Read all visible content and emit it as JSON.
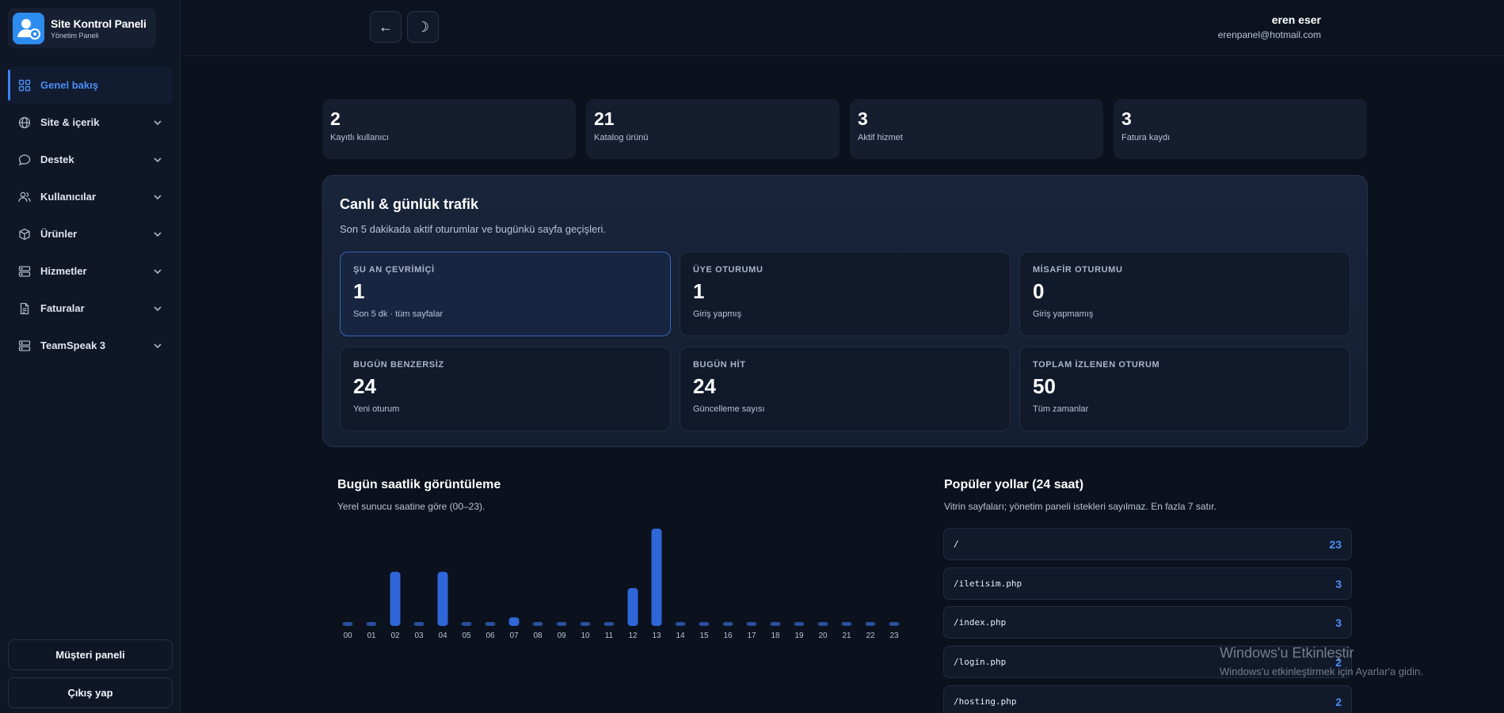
{
  "brand": {
    "title": "Site Kontrol Paneli",
    "subtitle": "Yönetim Paneli"
  },
  "nav": [
    {
      "label": "Genel bakış",
      "icon": "grid-icon",
      "active": true
    },
    {
      "label": "Site & içerik",
      "icon": "globe-icon"
    },
    {
      "label": "Destek",
      "icon": "chat-icon"
    },
    {
      "label": "Kullanıcılar",
      "icon": "users-icon"
    },
    {
      "label": "Ürünler",
      "icon": "box-icon"
    },
    {
      "label": "Hizmetler",
      "icon": "server-icon"
    },
    {
      "label": "Faturalar",
      "icon": "document-icon"
    },
    {
      "label": "TeamSpeak 3",
      "icon": "server-icon"
    }
  ],
  "sidebar_footer": {
    "customer_panel": "Müşteri paneli",
    "logout": "Çıkış yap"
  },
  "header": {
    "back_glyph": "←",
    "theme_glyph": "☽",
    "user_name": "eren eser",
    "user_email": "erenpanel@hotmail.com"
  },
  "stats": [
    {
      "value": "2",
      "label": "Kayıtlı kullanıcı"
    },
    {
      "value": "21",
      "label": "Katalog ürünü"
    },
    {
      "value": "3",
      "label": "Aktif hizmet"
    },
    {
      "value": "3",
      "label": "Fatura kaydı"
    }
  ],
  "traffic": {
    "title": "Canlı & günlük trafik",
    "description": "Son 5 dakikada aktif oturumlar ve bugünkü sayfa geçişleri.",
    "cells": [
      {
        "title": "ŞU AN ÇEVRİMİÇİ",
        "value": "1",
        "sub": "Son 5 dk · tüm sayfalar",
        "highlight": true
      },
      {
        "title": "ÜYE OTURUMU",
        "value": "1",
        "sub": "Giriş yapmış"
      },
      {
        "title": "MİSAFİR OTURUMU",
        "value": "0",
        "sub": "Giriş yapmamış"
      },
      {
        "title": "BUGÜN BENZERSİZ",
        "value": "24",
        "sub": "Yeni oturum"
      },
      {
        "title": "BUGÜN HİT",
        "value": "24",
        "sub": "Güncelleme sayısı"
      },
      {
        "title": "TOPLAM İZLENEN OTURUM",
        "value": "50",
        "sub": "Tüm zamanlar"
      }
    ]
  },
  "hourly": {
    "title": "Bugün saatlik görüntüleme",
    "description": "Yerel sunucu saatine göre (00–23)."
  },
  "chart_data": {
    "type": "bar",
    "categories": [
      "00",
      "01",
      "02",
      "03",
      "04",
      "05",
      "06",
      "07",
      "08",
      "09",
      "10",
      "11",
      "12",
      "13",
      "14",
      "15",
      "16",
      "17",
      "18",
      "19",
      "20",
      "21",
      "22",
      "23"
    ],
    "values": [
      0,
      0,
      5,
      0,
      5,
      0,
      0,
      0.8,
      0,
      0,
      0,
      0,
      3.5,
      9,
      0,
      0,
      0,
      0,
      0,
      0,
      0,
      0,
      0,
      0
    ],
    "colors": {
      "bar": "#2f67d8",
      "bar_top": "#3d7bf0",
      "tick": "#b8c3d6"
    }
  },
  "popular": {
    "title": "Popüler yollar (24 saat)",
    "description": "Vitrin sayfaları; yönetim paneli istekleri sayılmaz. En fazla 7 satır.",
    "rows": [
      {
        "path": "/",
        "count": "23"
      },
      {
        "path": "/iletisim.php",
        "count": "3"
      },
      {
        "path": "/index.php",
        "count": "3"
      },
      {
        "path": "/login.php",
        "count": "2"
      },
      {
        "path": "/hosting.php",
        "count": "2"
      }
    ]
  },
  "watermark": {
    "title": "Windows'u Etkinleştir",
    "sub": "Windows'u etkinleştirmek için Ayarlar'a gidin."
  },
  "colors": {
    "accent": "#3b82f6",
    "bg": "#0b111d",
    "card": "#151d2e"
  }
}
